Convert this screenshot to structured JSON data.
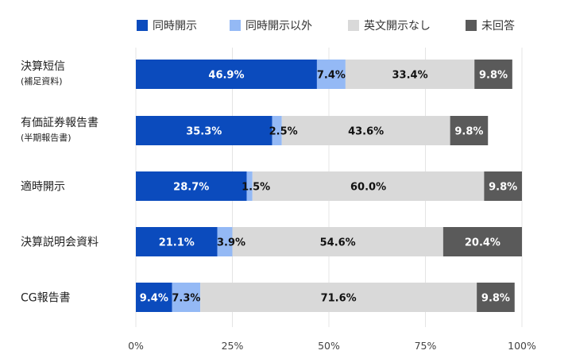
{
  "chart_data": {
    "type": "bar",
    "orientation": "horizontal",
    "stacked": true,
    "categories": [
      {
        "label": "決算短信",
        "sublabel": "(補足資料)"
      },
      {
        "label": "有価証券報告書",
        "sublabel": "(半期報告書)"
      },
      {
        "label": "適時開示",
        "sublabel": ""
      },
      {
        "label": "決算説明会資料",
        "sublabel": ""
      },
      {
        "label": "CG報告書",
        "sublabel": ""
      }
    ],
    "series": [
      {
        "name": "同時開示",
        "color": "#0b4bbd",
        "label_color": "#ffffff",
        "values": [
          46.9,
          35.3,
          28.7,
          21.1,
          9.4
        ]
      },
      {
        "name": "同時開示以外",
        "color": "#94b9f5",
        "label_color": "#111111",
        "values": [
          7.4,
          2.5,
          1.5,
          3.9,
          7.3
        ]
      },
      {
        "name": "英文開示なし",
        "color": "#d9d9d9",
        "label_color": "#111111",
        "values": [
          33.4,
          43.6,
          60.0,
          54.6,
          71.6
        ]
      },
      {
        "name": "未回答",
        "color": "#5a5a5a",
        "label_color": "#ffffff",
        "values": [
          9.8,
          9.8,
          9.8,
          20.4,
          9.8
        ]
      }
    ],
    "value_labels": [
      [
        "46.9%",
        "7.4%",
        "33.4%",
        "9.8%"
      ],
      [
        "35.3%",
        "2.5%",
        "43.6%",
        "9.8%"
      ],
      [
        "28.7%",
        "1.5%",
        "60.0%",
        "9.8%"
      ],
      [
        "21.1%",
        "3.9%",
        "54.6%",
        "20.4%"
      ],
      [
        "9.4%",
        "7.3%",
        "71.6%",
        "9.8%"
      ]
    ],
    "xlim": [
      0,
      100
    ],
    "xticks": [
      "0%",
      "25%",
      "50%",
      "75%",
      "100%"
    ],
    "legend_position": "top",
    "grid": "vertical"
  }
}
